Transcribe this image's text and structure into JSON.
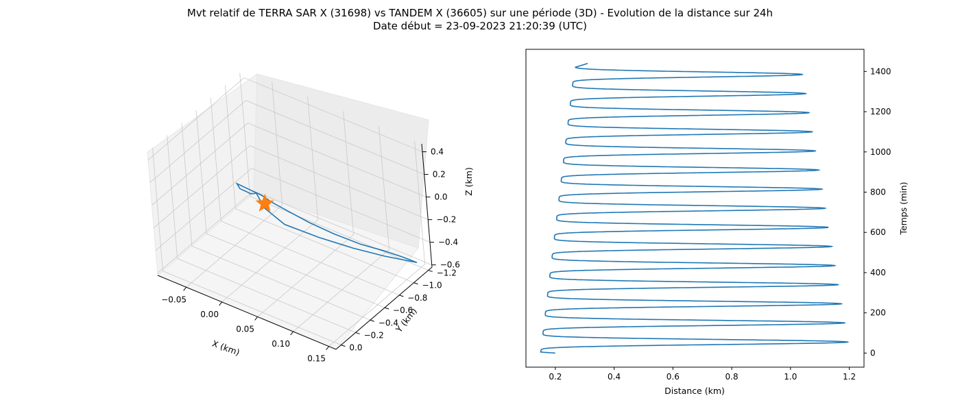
{
  "figure": {
    "title_line1": "Mvt relatif de TERRA SAR X (31698) vs TANDEM X (36605) sur une période (3D) - Evolution de la distance sur 24h",
    "title_line2": "Date début = 23-09-2023 21:20:39 (UTC)"
  },
  "chart_data": [
    {
      "type": "line",
      "projection": "3d",
      "xlabel": "X (km)",
      "ylabel": "Y (km)",
      "zlabel": "Z (km)",
      "xlim": [
        -0.09,
        0.16
      ],
      "ylim": [
        -1.25,
        0.07
      ],
      "zlim": [
        -0.62,
        0.47
      ],
      "xticks": [
        "−0.05",
        "0.00",
        "0.05",
        "0.10",
        "0.15"
      ],
      "yticks": [
        "−1.2",
        "−1.0",
        "−0.8",
        "−0.6",
        "−0.4",
        "−0.2",
        "0.0"
      ],
      "zticks": [
        "−0.6",
        "−0.4",
        "−0.2",
        "0.0",
        "0.2",
        "0.4"
      ],
      "grid": true,
      "series": [
        {
          "color": "#1f77b4",
          "points": [
            [
              0.15,
              -1.15,
              -0.55
            ],
            [
              0.14,
              -1.05,
              -0.47
            ],
            [
              0.125,
              -0.95,
              -0.4
            ],
            [
              0.11,
              -0.8,
              -0.3
            ],
            [
              0.09,
              -0.65,
              -0.18
            ],
            [
              0.07,
              -0.52,
              -0.06
            ],
            [
              0.05,
              -0.42,
              0.05
            ],
            [
              0.035,
              -0.36,
              0.12
            ],
            [
              0.025,
              -0.33,
              0.17
            ],
            [
              0.015,
              -0.3,
              0.2
            ],
            [
              0.0,
              -0.25,
              0.25
            ],
            [
              0.015,
              -0.15,
              0.3
            ],
            [
              0.03,
              -0.1,
              0.34
            ],
            [
              0.04,
              -0.06,
              0.37
            ],
            [
              0.05,
              -0.02,
              0.42
            ],
            [
              0.055,
              0.0,
              0.45
            ],
            [
              0.06,
              -0.05,
              0.3
            ],
            [
              0.07,
              -0.2,
              0.1
            ],
            [
              0.09,
              -0.45,
              -0.1
            ],
            [
              0.11,
              -0.7,
              -0.28
            ],
            [
              0.13,
              -0.92,
              -0.42
            ],
            [
              0.15,
              -1.15,
              -0.55
            ]
          ]
        },
        {
          "marker": "star",
          "color": "#ff7f0e",
          "points": [
            [
              0.055,
              -0.1,
              0.3
            ]
          ]
        }
      ]
    },
    {
      "type": "line",
      "xlabel": "Distance (km)",
      "ylabel": "Temps (min)",
      "xlim": [
        0.1,
        1.25
      ],
      "ylim": [
        -70,
        1510
      ],
      "xticks": [
        0.2,
        0.4,
        0.6,
        0.8,
        1.0,
        1.2
      ],
      "yticks": [
        0,
        200,
        400,
        600,
        800,
        1000,
        1200,
        1400
      ],
      "yaxis_position": "right",
      "grid": false,
      "series": [
        {
          "color": "#1f77b4",
          "period_min": 95,
          "start_min": 0,
          "end_min": 1440,
          "start_distance": 0.2,
          "max_envelope": [
            [
              55,
              1.195
            ],
            [
              1390,
              1.04
            ]
          ],
          "min_envelope": [
            [
              0,
              0.15
            ],
            [
              1410,
              0.265
            ]
          ],
          "end_distance": 0.31
        }
      ]
    }
  ]
}
